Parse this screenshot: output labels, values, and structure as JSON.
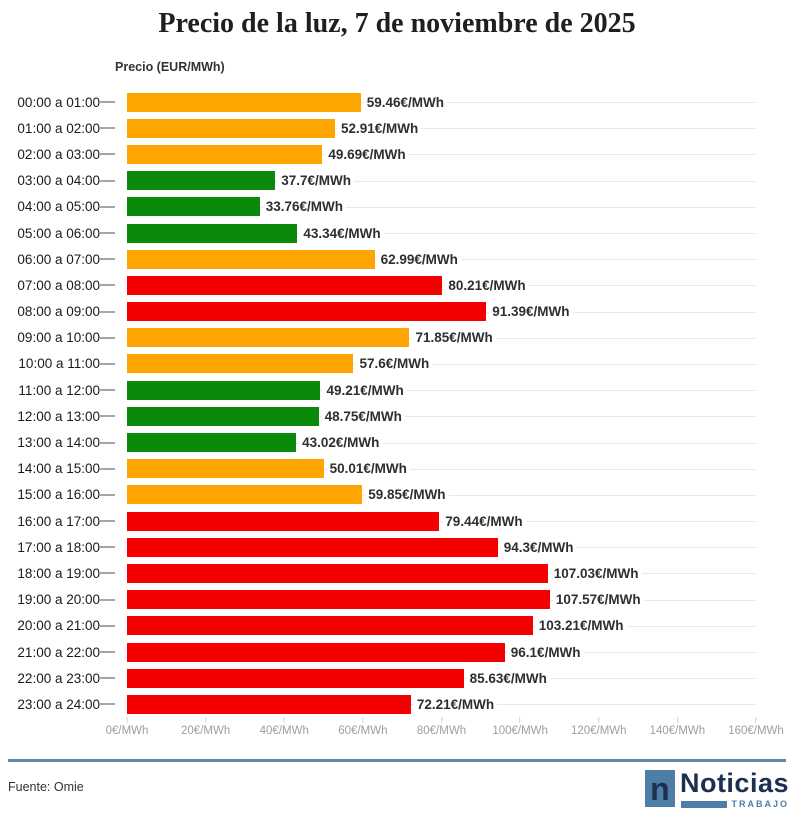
{
  "title": "Precio de la luz, 7 de noviembre de 2025",
  "axis_title": "Precio (EUR/MWh)",
  "source": "Fuente: Omie",
  "logo": {
    "mark": "n",
    "name": "Noticias",
    "sub": "TRABAJO"
  },
  "colors": {
    "orange": "#ffa502",
    "green": "#0a8a0a",
    "red": "#f40000",
    "accent_steel_blue": "#4e7da6",
    "accent_navy": "#1c3050",
    "gridline": "#e9e9e9",
    "axis_text": "#9e9e9e"
  },
  "chart_data": {
    "type": "bar",
    "orientation": "horizontal",
    "title": "Precio de la luz, 7 de noviembre de 2025",
    "xlabel": "Precio (EUR/MWh)",
    "xlim": [
      0,
      160
    ],
    "grid": "horizontal row gridlines, light gray",
    "legend": "none",
    "categories": [
      "00:00 a 01:00",
      "01:00 a 02:00",
      "02:00 a 03:00",
      "03:00 a 04:00",
      "04:00 a 05:00",
      "05:00 a 06:00",
      "06:00 a 07:00",
      "07:00 a 08:00",
      "08:00 a 09:00",
      "09:00 a 10:00",
      "10:00 a 11:00",
      "11:00 a 12:00",
      "12:00 a 13:00",
      "13:00 a 14:00",
      "14:00 a 15:00",
      "15:00 a 16:00",
      "16:00 a 17:00",
      "17:00 a 18:00",
      "18:00 a 19:00",
      "19:00 a 20:00",
      "20:00 a 21:00",
      "21:00 a 22:00",
      "22:00 a 23:00",
      "23:00 a 24:00"
    ],
    "values": [
      59.46,
      52.91,
      49.69,
      37.7,
      33.76,
      43.34,
      62.99,
      80.21,
      91.39,
      71.85,
      57.6,
      49.21,
      48.75,
      43.02,
      50.01,
      59.85,
      79.44,
      94.3,
      107.03,
      107.57,
      103.21,
      96.1,
      85.63,
      72.21
    ],
    "value_labels": [
      "59.46€/MWh",
      "52.91€/MWh",
      "49.69€/MWh",
      "37.7€/MWh",
      "33.76€/MWh",
      "43.34€/MWh",
      "62.99€/MWh",
      "80.21€/MWh",
      "91.39€/MWh",
      "71.85€/MWh",
      "57.6€/MWh",
      "49.21€/MWh",
      "48.75€/MWh",
      "43.02€/MWh",
      "50.01€/MWh",
      "59.85€/MWh",
      "79.44€/MWh",
      "94.3€/MWh",
      "107.03€/MWh",
      "107.57€/MWh",
      "103.21€/MWh",
      "96.1€/MWh",
      "85.63€/MWh",
      "72.21€/MWh"
    ],
    "bar_colors": [
      "orange",
      "orange",
      "orange",
      "green",
      "green",
      "green",
      "orange",
      "red",
      "red",
      "orange",
      "orange",
      "green",
      "green",
      "green",
      "orange",
      "orange",
      "red",
      "red",
      "red",
      "red",
      "red",
      "red",
      "red",
      "red"
    ],
    "x_ticks": [
      {
        "v": 0,
        "label": "0€/MWh"
      },
      {
        "v": 20,
        "label": "20€/MWh"
      },
      {
        "v": 40,
        "label": "40€/MWh"
      },
      {
        "v": 60,
        "label": "60€/MWh"
      },
      {
        "v": 80,
        "label": "80€/MWh"
      },
      {
        "v": 100,
        "label": "100€/MWh"
      },
      {
        "v": 120,
        "label": "120€/MWh"
      },
      {
        "v": 140,
        "label": "140€/MWh"
      },
      {
        "v": 160,
        "label": "160€/MWh"
      }
    ]
  }
}
